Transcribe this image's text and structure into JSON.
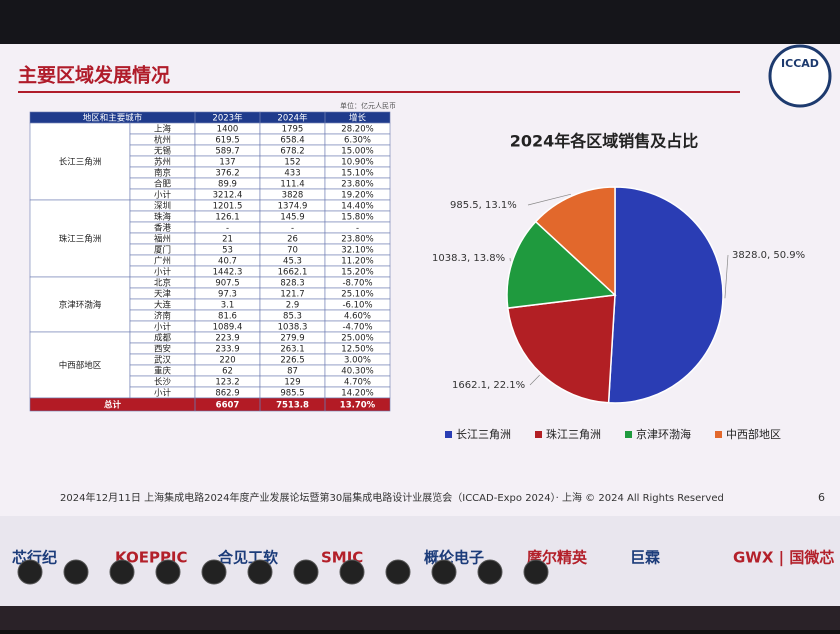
{
  "header": {
    "title": "主要区域发展情况",
    "logo": "ICCAD"
  },
  "table": {
    "unit": "单位：亿元人民币",
    "header": [
      "地区和主要城市",
      "2023年",
      "2024年",
      "增长"
    ],
    "groups": [
      {
        "region": "长江三角洲",
        "rows": [
          [
            "上海",
            "1400",
            "1795",
            "28.20%"
          ],
          [
            "杭州",
            "619.5",
            "658.4",
            "6.30%"
          ],
          [
            "无锡",
            "589.7",
            "678.2",
            "15.00%"
          ],
          [
            "苏州",
            "137",
            "152",
            "10.90%"
          ],
          [
            "南京",
            "376.2",
            "433",
            "15.10%"
          ],
          [
            "合肥",
            "89.9",
            "111.4",
            "23.80%"
          ],
          [
            "小计",
            "3212.4",
            "3828",
            "19.20%"
          ]
        ]
      },
      {
        "region": "珠江三角洲",
        "rows": [
          [
            "深圳",
            "1201.5",
            "1374.9",
            "14.40%"
          ],
          [
            "珠海",
            "126.1",
            "145.9",
            "15.80%"
          ],
          [
            "香港",
            "-",
            "-",
            "-"
          ],
          [
            "福州",
            "21",
            "26",
            "23.80%"
          ],
          [
            "厦门",
            "53",
            "70",
            "32.10%"
          ],
          [
            "广州",
            "40.7",
            "45.3",
            "11.20%"
          ],
          [
            "小计",
            "1442.3",
            "1662.1",
            "15.20%"
          ]
        ]
      },
      {
        "region": "京津环渤海",
        "rows": [
          [
            "北京",
            "907.5",
            "828.3",
            "-8.70%"
          ],
          [
            "天津",
            "97.3",
            "121.7",
            "25.10%"
          ],
          [
            "大连",
            "3.1",
            "2.9",
            "-6.10%"
          ],
          [
            "济南",
            "81.6",
            "85.3",
            "4.60%"
          ],
          [
            "小计",
            "1089.4",
            "1038.3",
            "-4.70%"
          ]
        ]
      },
      {
        "region": "中西部地区",
        "rows": [
          [
            "成都",
            "223.9",
            "279.9",
            "25.00%"
          ],
          [
            "西安",
            "233.9",
            "263.1",
            "12.50%"
          ],
          [
            "武汉",
            "220",
            "226.5",
            "3.00%"
          ],
          [
            "重庆",
            "62",
            "87",
            "40.30%"
          ],
          [
            "长沙",
            "123.2",
            "129",
            "4.70%"
          ],
          [
            "小计",
            "862.9",
            "985.5",
            "14.20%"
          ]
        ]
      }
    ],
    "total": [
      "总计",
      "6607",
      "7513.8",
      "13.70%"
    ]
  },
  "chart_data": {
    "type": "pie",
    "title": "2024年各区域销售及占比",
    "categories": [
      "长江三角洲",
      "珠江三角洲",
      "京津环渤海",
      "中西部地区"
    ],
    "values": [
      3828.0,
      1662.1,
      1038.3,
      985.5
    ],
    "value_labels": [
      "3828.0, 50.9%",
      "1662.1, 22.1%",
      "1038.3, 13.8%",
      "985.5, 13.1%"
    ],
    "colors": [
      "#2a3db4",
      "#b21f24",
      "#1f9a3e",
      "#e2682c"
    ]
  },
  "footer": {
    "text": "2024年12月11日 上海集成电路2024年度产业发展论坛暨第30届集成电路设计业展览会（ICCAD-Expo 2024）· 上海 © 2024 All Rights Reserved",
    "page": "6"
  },
  "sponsors": [
    "芯行纪",
    "KOEPPIC",
    "合见工软",
    "SMIC",
    "概伦电子",
    "摩尔精英",
    "巨霖",
    "GWX | 国微芯"
  ]
}
